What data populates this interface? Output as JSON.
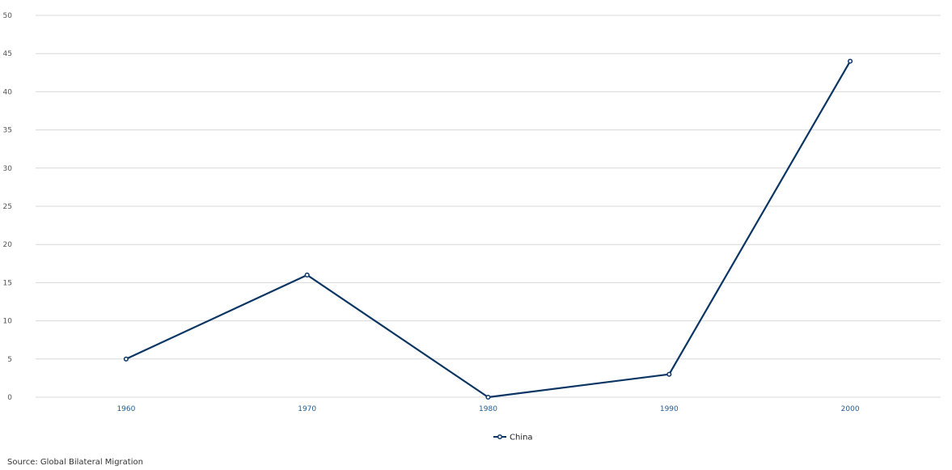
{
  "chart_data": {
    "type": "line",
    "x": [
      "1960",
      "1970",
      "1980",
      "1990",
      "2000"
    ],
    "series": [
      {
        "name": "China",
        "values": [
          5,
          16,
          0,
          3,
          44
        ],
        "color": "#0b3563"
      }
    ],
    "ylim": [
      0,
      50
    ],
    "yticks": [
      "0",
      "5",
      "10",
      "15",
      "20",
      "25",
      "30",
      "35",
      "40",
      "45",
      "50"
    ],
    "grid": true,
    "legend": "bottom-center",
    "gridline_color": "#d8d8d8",
    "x_tick_color": "#1f5c99"
  },
  "source": "Source: Global Bilateral Migration"
}
